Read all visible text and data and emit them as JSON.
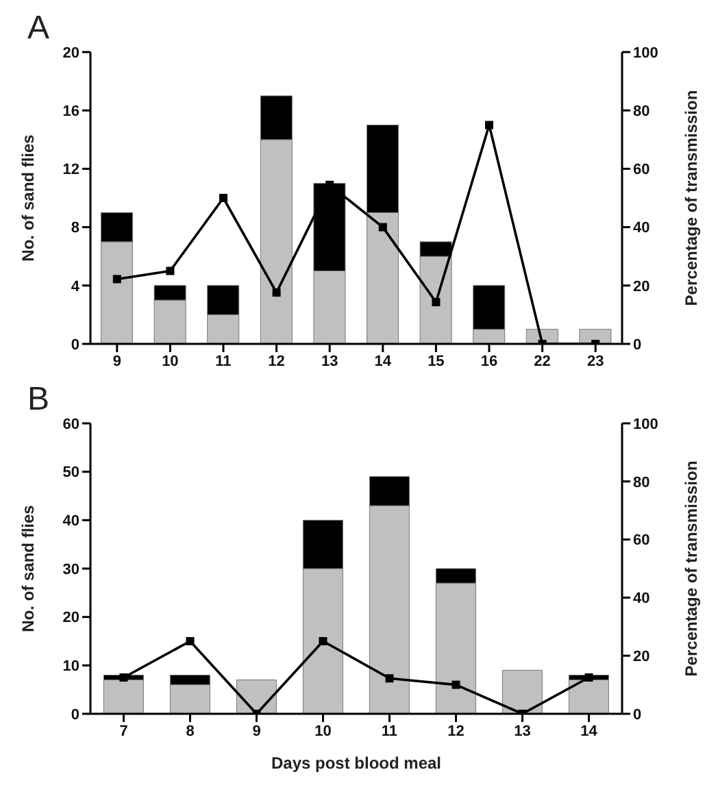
{
  "chart_data": [
    {
      "type": "bar",
      "title": "A",
      "ylabel": "No. of sand flies",
      "y2label": "Percentage of transmission",
      "categories": [
        "9",
        "10",
        "11",
        "12",
        "13",
        "14",
        "15",
        "16",
        "22",
        "23"
      ],
      "stacked": true,
      "ylim": [
        0,
        20
      ],
      "yticks": [
        0,
        4,
        8,
        12,
        16,
        20
      ],
      "y2lim": [
        0,
        100
      ],
      "y2ticks": [
        0,
        20,
        40,
        60,
        80,
        100
      ],
      "grid": false,
      "legend": false,
      "marker": "square",
      "series": [
        {
          "color": "#c0c0c0",
          "values": [
            7,
            3,
            2,
            14,
            5,
            9,
            6,
            1,
            1,
            1
          ]
        },
        {
          "color": "#000000",
          "values": [
            2,
            1,
            2,
            3,
            6,
            6,
            1,
            3,
            0,
            0
          ]
        },
        {
          "type": "line",
          "axis": "y2",
          "color": "#000000",
          "values": [
            22.2,
            25,
            50,
            17.6,
            54.5,
            40,
            14.3,
            75,
            0,
            0
          ]
        }
      ]
    },
    {
      "type": "bar",
      "title": "B",
      "xlabel": "Days post blood meal",
      "ylabel": "No. of sand flies",
      "y2label": "Percentage of transmission",
      "categories": [
        "7",
        "8",
        "9",
        "10",
        "11",
        "12",
        "13",
        "14"
      ],
      "stacked": true,
      "ylim": [
        0,
        60
      ],
      "yticks": [
        0,
        10,
        20,
        30,
        40,
        50,
        60
      ],
      "y2lim": [
        0,
        100
      ],
      "y2ticks": [
        0,
        20,
        40,
        60,
        80,
        100
      ],
      "grid": false,
      "legend": false,
      "marker": "square",
      "series": [
        {
          "color": "#c0c0c0",
          "values": [
            7,
            6,
            7,
            30,
            43,
            27,
            9,
            7
          ]
        },
        {
          "color": "#000000",
          "values": [
            1,
            2,
            0,
            10,
            6,
            3,
            0,
            1
          ]
        },
        {
          "type": "line",
          "axis": "y2",
          "color": "#000000",
          "values": [
            12.5,
            25,
            0,
            25,
            12.2,
            10,
            0,
            12.5
          ]
        }
      ]
    }
  ]
}
